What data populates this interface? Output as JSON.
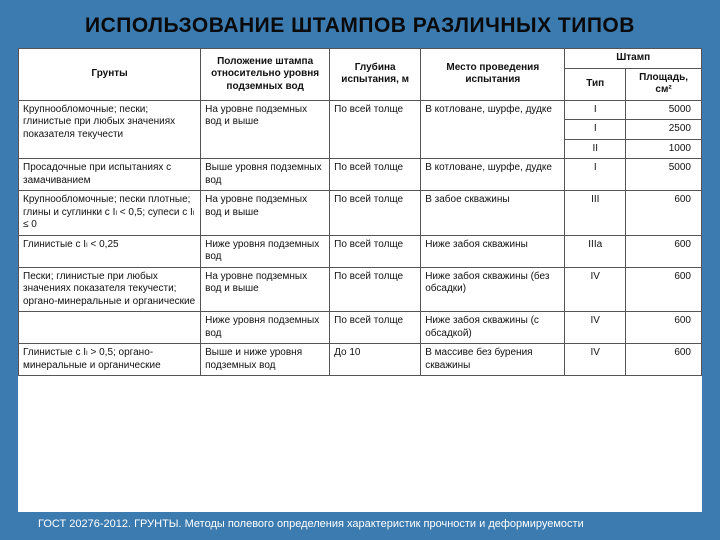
{
  "title": "ИСПОЛЬЗОВАНИЕ ШТАМПОВ РАЗЛИЧНЫХ ТИПОВ",
  "headers": {
    "c1": "Грунты",
    "c2": "Положение штампа относительно уровня подземных вод",
    "c3": "Глубина испытания, м",
    "c4": "Место проведения испытания",
    "stamp": "Штамп",
    "c5": "Тип",
    "c6": "Площадь, см²"
  },
  "colWidths": [
    "24%",
    "17%",
    "12%",
    "19%",
    "8%",
    "10%"
  ],
  "rows": [
    {
      "c1": "Крупнообломочные; пески; глинистые при любых значениях показателя текучести",
      "c2": "На уровне подземных вод и выше",
      "c3": "По всей толще",
      "c4": "В котловане, шурфе, дудке",
      "types": [
        "I",
        "I",
        "II"
      ],
      "areas": [
        "5000",
        "2500",
        "1000"
      ]
    },
    {
      "c1": "Просадочные при испытаниях с замачиванием",
      "c2": "Выше уровня подземных вод",
      "c3": "По всей толще",
      "c4": "В котловане, шурфе, дудке",
      "types": [
        "I"
      ],
      "areas": [
        "5000"
      ]
    },
    {
      "c1": "Крупнообломочные; пески плотные; глины и суглинки с Iₗ < 0,5; супеси с Iₗ ≤ 0",
      "c2": "На уровне подземных вод и выше",
      "c3": "По всей толще",
      "c4": "В забое скважины",
      "types": [
        "III"
      ],
      "areas": [
        "600"
      ]
    },
    {
      "c1": "Глинистые с Iₗ < 0,25",
      "c2": "Ниже уровня подземных вод",
      "c3": "По всей толще",
      "c4": "Ниже забоя скважины",
      "types": [
        "IIIа"
      ],
      "areas": [
        "600"
      ]
    },
    {
      "c1": "Пески; глинистые при любых значениях показателя текучести; органо-минеральные и органические",
      "c2": "На уровне подземных вод и выше",
      "c3": "По всей толще",
      "c4": "Ниже забоя скважины (без обсадки)",
      "types": [
        "IV"
      ],
      "areas": [
        "600"
      ]
    },
    {
      "c1": " ",
      "c2": "Ниже уровня подземных вод",
      "c3": "По всей толще",
      "c4": "Ниже забоя скважины (с обсадкой)",
      "types": [
        "IV"
      ],
      "areas": [
        "600"
      ]
    },
    {
      "c1": "Глинистые с Iₗ > 0,5; органо-минеральные и органические",
      "c2": "Выше и ниже уровня подземных вод",
      "c3": "До 10",
      "c4": "В массиве без бурения скважины",
      "types": [
        "IV"
      ],
      "areas": [
        "600"
      ]
    }
  ],
  "footer": "ГОСТ 20276-2012. ГРУНТЫ. Методы полевого определения характеристик прочности и деформируемости"
}
